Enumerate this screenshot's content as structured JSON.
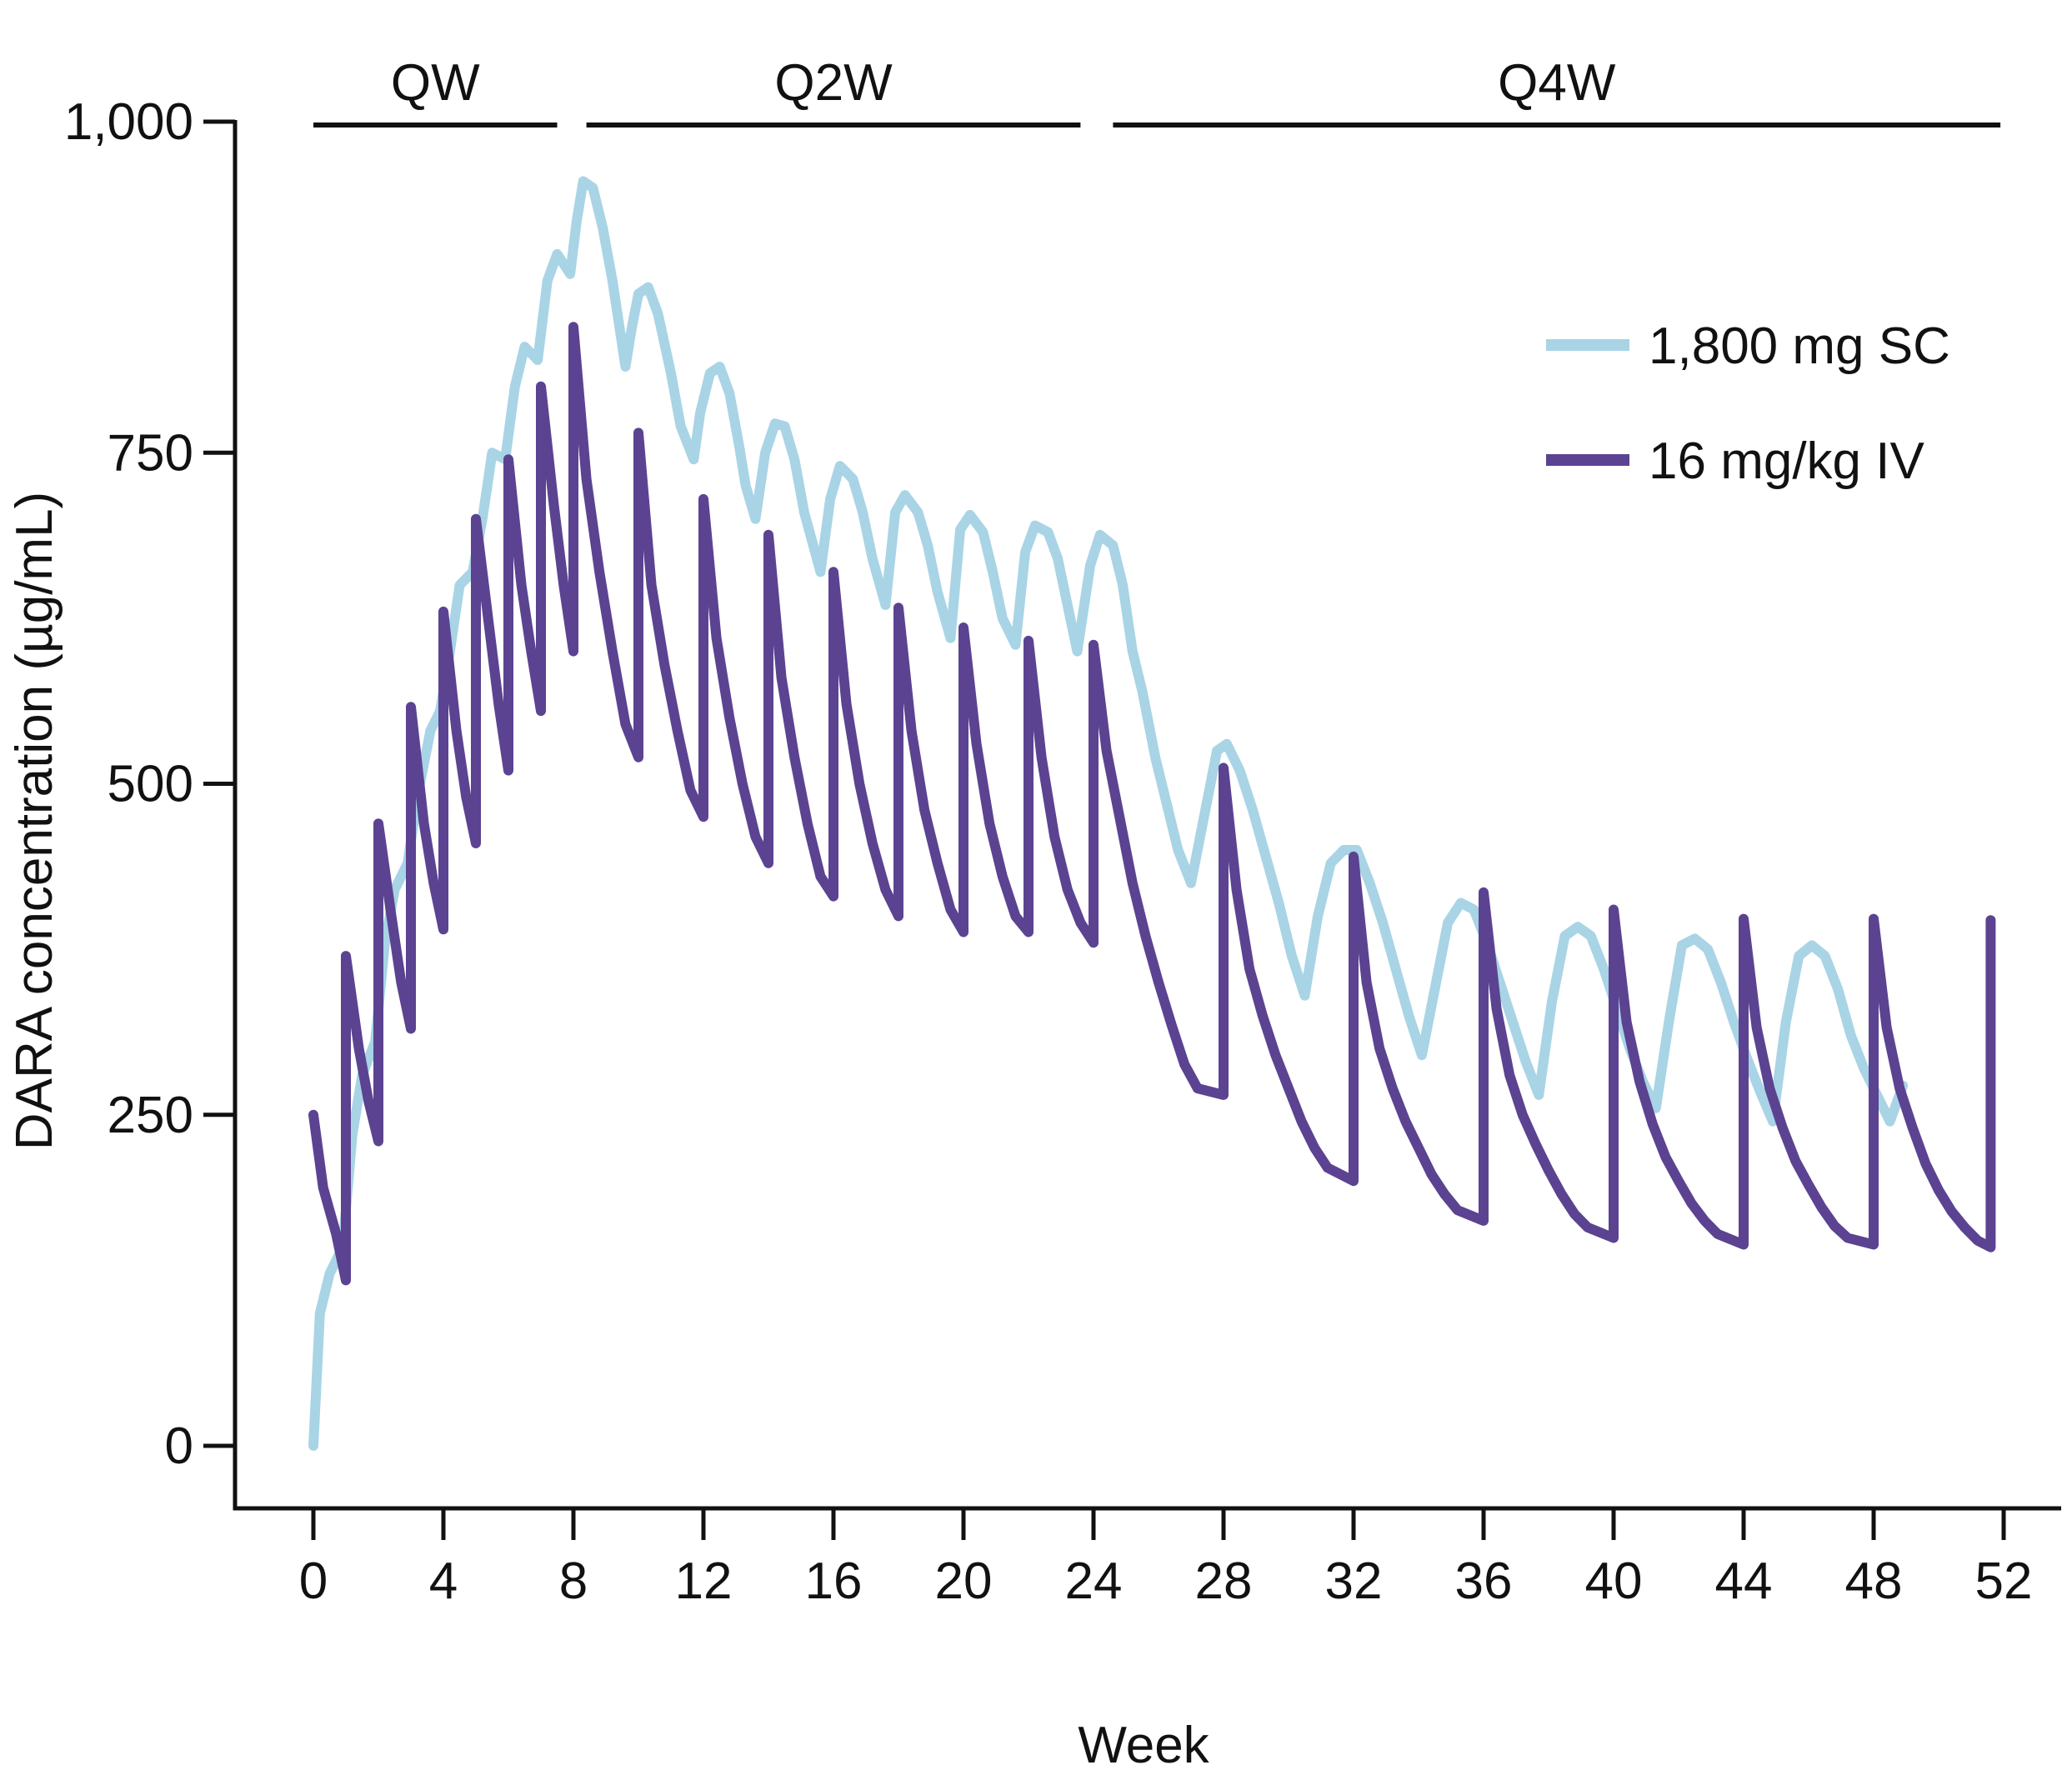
{
  "chart_data": {
    "type": "line",
    "title": "",
    "xlabel": "Week",
    "ylabel": "DARA concentration (µg/mL)",
    "xlim": [
      -1,
      53
    ],
    "ylim": [
      -50,
      1000
    ],
    "x_ticks": [
      0,
      4,
      8,
      12,
      16,
      20,
      24,
      28,
      32,
      36,
      40,
      44,
      48,
      52
    ],
    "x_tick_labels": [
      "0",
      "4",
      "8",
      "12",
      "16",
      "20",
      "24",
      "28",
      "32",
      "36",
      "40",
      "44",
      "48",
      "52"
    ],
    "y_ticks": [
      0,
      250,
      500,
      750,
      1000
    ],
    "y_tick_labels": [
      "0",
      "250",
      "500",
      "750",
      "1,000"
    ],
    "grid": false,
    "legend_position": "top-right",
    "regimens": [
      {
        "label": "QW",
        "start": 0,
        "end": 7.5
      },
      {
        "label": "Q2W",
        "start": 8.4,
        "end": 23.6
      },
      {
        "label": "Q4W",
        "start": 24.6,
        "end": 51.9
      }
    ],
    "series": [
      {
        "name": "1,800 mg SC",
        "color": "#a8d4e6",
        "points": [
          [
            0,
            0
          ],
          [
            0.2,
            100
          ],
          [
            0.5,
            130
          ],
          [
            0.9,
            150
          ],
          [
            1.2,
            235
          ],
          [
            1.5,
            280
          ],
          [
            1.9,
            305
          ],
          [
            2.2,
            380
          ],
          [
            2.5,
            420
          ],
          [
            2.9,
            440
          ],
          [
            3.2,
            490
          ],
          [
            3.6,
            540
          ],
          [
            3.9,
            555
          ],
          [
            4.2,
            600
          ],
          [
            4.5,
            650
          ],
          [
            4.9,
            660
          ],
          [
            5.2,
            700
          ],
          [
            5.5,
            750
          ],
          [
            5.9,
            745
          ],
          [
            6.2,
            800
          ],
          [
            6.5,
            830
          ],
          [
            6.9,
            820
          ],
          [
            7.2,
            880
          ],
          [
            7.5,
            900
          ],
          [
            7.9,
            885
          ],
          [
            8.1,
            925
          ],
          [
            8.3,
            955
          ],
          [
            8.6,
            950
          ],
          [
            8.9,
            920
          ],
          [
            9.2,
            880
          ],
          [
            9.6,
            815
          ],
          [
            9.8,
            845
          ],
          [
            10.0,
            870
          ],
          [
            10.3,
            875
          ],
          [
            10.6,
            855
          ],
          [
            11.0,
            810
          ],
          [
            11.3,
            770
          ],
          [
            11.7,
            745
          ],
          [
            11.9,
            780
          ],
          [
            12.2,
            810
          ],
          [
            12.5,
            815
          ],
          [
            12.8,
            795
          ],
          [
            13.1,
            755
          ],
          [
            13.3,
            725
          ],
          [
            13.6,
            700
          ],
          [
            13.9,
            750
          ],
          [
            14.2,
            772
          ],
          [
            14.5,
            770
          ],
          [
            14.8,
            745
          ],
          [
            15.1,
            705
          ],
          [
            15.6,
            660
          ],
          [
            15.9,
            715
          ],
          [
            16.2,
            740
          ],
          [
            16.6,
            730
          ],
          [
            16.9,
            705
          ],
          [
            17.2,
            670
          ],
          [
            17.6,
            635
          ],
          [
            17.9,
            705
          ],
          [
            18.2,
            718
          ],
          [
            18.6,
            705
          ],
          [
            18.9,
            680
          ],
          [
            19.2,
            645
          ],
          [
            19.6,
            610
          ],
          [
            19.9,
            692
          ],
          [
            20.2,
            703
          ],
          [
            20.6,
            690
          ],
          [
            20.9,
            660
          ],
          [
            21.2,
            625
          ],
          [
            21.6,
            605
          ],
          [
            21.9,
            675
          ],
          [
            22.2,
            695
          ],
          [
            22.6,
            690
          ],
          [
            22.9,
            670
          ],
          [
            23.2,
            635
          ],
          [
            23.5,
            600
          ],
          [
            23.9,
            665
          ],
          [
            24.2,
            688
          ],
          [
            24.6,
            680
          ],
          [
            24.9,
            650
          ],
          [
            25.2,
            600
          ],
          [
            25.5,
            570
          ],
          [
            25.9,
            520
          ],
          [
            26.2,
            490
          ],
          [
            26.6,
            450
          ],
          [
            27.0,
            425
          ],
          [
            27.4,
            475
          ],
          [
            27.8,
            525
          ],
          [
            28.1,
            530
          ],
          [
            28.5,
            510
          ],
          [
            28.9,
            480
          ],
          [
            29.3,
            445
          ],
          [
            29.7,
            410
          ],
          [
            30.1,
            370
          ],
          [
            30.5,
            340
          ],
          [
            30.9,
            400
          ],
          [
            31.3,
            440
          ],
          [
            31.7,
            450
          ],
          [
            32.1,
            450
          ],
          [
            32.5,
            425
          ],
          [
            32.9,
            395
          ],
          [
            33.3,
            360
          ],
          [
            33.7,
            325
          ],
          [
            34.1,
            295
          ],
          [
            34.5,
            345
          ],
          [
            34.9,
            395
          ],
          [
            35.3,
            410
          ],
          [
            35.7,
            405
          ],
          [
            36.1,
            380
          ],
          [
            36.5,
            350
          ],
          [
            36.9,
            320
          ],
          [
            37.3,
            290
          ],
          [
            37.7,
            265
          ],
          [
            38.1,
            335
          ],
          [
            38.5,
            385
          ],
          [
            38.9,
            392
          ],
          [
            39.3,
            385
          ],
          [
            39.7,
            360
          ],
          [
            40.1,
            330
          ],
          [
            40.5,
            300
          ],
          [
            40.9,
            275
          ],
          [
            41.3,
            255
          ],
          [
            41.7,
            320
          ],
          [
            42.1,
            378
          ],
          [
            42.5,
            383
          ],
          [
            42.9,
            375
          ],
          [
            43.3,
            350
          ],
          [
            43.7,
            320
          ],
          [
            44.1,
            293
          ],
          [
            44.5,
            268
          ],
          [
            44.9,
            245
          ],
          [
            45.3,
            320
          ],
          [
            45.7,
            370
          ],
          [
            46.1,
            378
          ],
          [
            46.5,
            370
          ],
          [
            46.9,
            345
          ],
          [
            47.3,
            310
          ],
          [
            47.7,
            285
          ],
          [
            48.1,
            265
          ],
          [
            48.5,
            245
          ],
          [
            48.9,
            272
          ]
        ]
      },
      {
        "name": "16 mg/kg IV",
        "color": "#5b4391",
        "points": [
          [
            0,
            250
          ],
          [
            0.3,
            195
          ],
          [
            0.7,
            160
          ],
          [
            1.0,
            125
          ],
          [
            1.0,
            370
          ],
          [
            1.4,
            300
          ],
          [
            1.7,
            260
          ],
          [
            2.0,
            230
          ],
          [
            2.0,
            470
          ],
          [
            2.4,
            400
          ],
          [
            2.7,
            350
          ],
          [
            3.0,
            315
          ],
          [
            3.0,
            558
          ],
          [
            3.4,
            470
          ],
          [
            3.7,
            425
          ],
          [
            4.0,
            390
          ],
          [
            4.0,
            630
          ],
          [
            4.4,
            540
          ],
          [
            4.7,
            490
          ],
          [
            5.0,
            455
          ],
          [
            5.0,
            700
          ],
          [
            5.4,
            620
          ],
          [
            5.7,
            560
          ],
          [
            6.0,
            510
          ],
          [
            6.0,
            745
          ],
          [
            6.4,
            650
          ],
          [
            6.7,
            600
          ],
          [
            7.0,
            555
          ],
          [
            7.0,
            800
          ],
          [
            7.4,
            710
          ],
          [
            7.7,
            650
          ],
          [
            8.0,
            600
          ],
          [
            8.0,
            845
          ],
          [
            8.4,
            730
          ],
          [
            8.8,
            660
          ],
          [
            9.2,
            600
          ],
          [
            9.6,
            545
          ],
          [
            10.0,
            520
          ],
          [
            10.0,
            765
          ],
          [
            10.4,
            650
          ],
          [
            10.8,
            590
          ],
          [
            11.2,
            540
          ],
          [
            11.6,
            495
          ],
          [
            12.0,
            475
          ],
          [
            12.0,
            715
          ],
          [
            12.4,
            610
          ],
          [
            12.8,
            550
          ],
          [
            13.2,
            500
          ],
          [
            13.6,
            460
          ],
          [
            14.0,
            440
          ],
          [
            14.0,
            688
          ],
          [
            14.4,
            580
          ],
          [
            14.8,
            520
          ],
          [
            15.2,
            470
          ],
          [
            15.6,
            430
          ],
          [
            16.0,
            415
          ],
          [
            16.0,
            660
          ],
          [
            16.4,
            560
          ],
          [
            16.8,
            500
          ],
          [
            17.2,
            455
          ],
          [
            17.6,
            420
          ],
          [
            18.0,
            400
          ],
          [
            18.0,
            633
          ],
          [
            18.4,
            540
          ],
          [
            18.8,
            480
          ],
          [
            19.2,
            440
          ],
          [
            19.6,
            405
          ],
          [
            20.0,
            388
          ],
          [
            20.0,
            618
          ],
          [
            20.4,
            530
          ],
          [
            20.8,
            470
          ],
          [
            21.2,
            430
          ],
          [
            21.6,
            400
          ],
          [
            22.0,
            388
          ],
          [
            22.0,
            608
          ],
          [
            22.4,
            520
          ],
          [
            22.8,
            460
          ],
          [
            23.2,
            420
          ],
          [
            23.6,
            395
          ],
          [
            24.0,
            380
          ],
          [
            24.0,
            605
          ],
          [
            24.4,
            525
          ],
          [
            24.8,
            475
          ],
          [
            25.2,
            425
          ],
          [
            25.6,
            385
          ],
          [
            26.0,
            350
          ],
          [
            26.4,
            318
          ],
          [
            26.8,
            288
          ],
          [
            27.2,
            270
          ],
          [
            28.0,
            265
          ],
          [
            28.0,
            512
          ],
          [
            28.4,
            420
          ],
          [
            28.8,
            360
          ],
          [
            29.2,
            325
          ],
          [
            29.6,
            295
          ],
          [
            30.0,
            270
          ],
          [
            30.4,
            245
          ],
          [
            30.8,
            225
          ],
          [
            31.2,
            210
          ],
          [
            32.0,
            200
          ],
          [
            32.0,
            445
          ],
          [
            32.4,
            350
          ],
          [
            32.8,
            300
          ],
          [
            33.2,
            270
          ],
          [
            33.6,
            245
          ],
          [
            34.0,
            225
          ],
          [
            34.4,
            205
          ],
          [
            34.8,
            190
          ],
          [
            35.2,
            178
          ],
          [
            36.0,
            170
          ],
          [
            36.0,
            418
          ],
          [
            36.4,
            330
          ],
          [
            36.8,
            280
          ],
          [
            37.2,
            250
          ],
          [
            37.6,
            228
          ],
          [
            38.0,
            208
          ],
          [
            38.4,
            190
          ],
          [
            38.8,
            175
          ],
          [
            39.2,
            165
          ],
          [
            40.0,
            157
          ],
          [
            40.0,
            405
          ],
          [
            40.4,
            320
          ],
          [
            40.8,
            275
          ],
          [
            41.2,
            243
          ],
          [
            41.6,
            218
          ],
          [
            42.0,
            200
          ],
          [
            42.4,
            183
          ],
          [
            42.8,
            170
          ],
          [
            43.2,
            160
          ],
          [
            44.0,
            152
          ],
          [
            44.0,
            398
          ],
          [
            44.4,
            316
          ],
          [
            44.8,
            270
          ],
          [
            45.2,
            240
          ],
          [
            45.6,
            215
          ],
          [
            46.0,
            197
          ],
          [
            46.4,
            180
          ],
          [
            46.8,
            166
          ],
          [
            47.2,
            157
          ],
          [
            48.0,
            152
          ],
          [
            48.0,
            398
          ],
          [
            48.4,
            316
          ],
          [
            48.8,
            270
          ],
          [
            49.2,
            240
          ],
          [
            49.6,
            213
          ],
          [
            50.0,
            193
          ],
          [
            50.4,
            177
          ],
          [
            50.8,
            165
          ],
          [
            51.2,
            155
          ],
          [
            51.6,
            150
          ],
          [
            51.6,
            397
          ]
        ]
      }
    ]
  }
}
